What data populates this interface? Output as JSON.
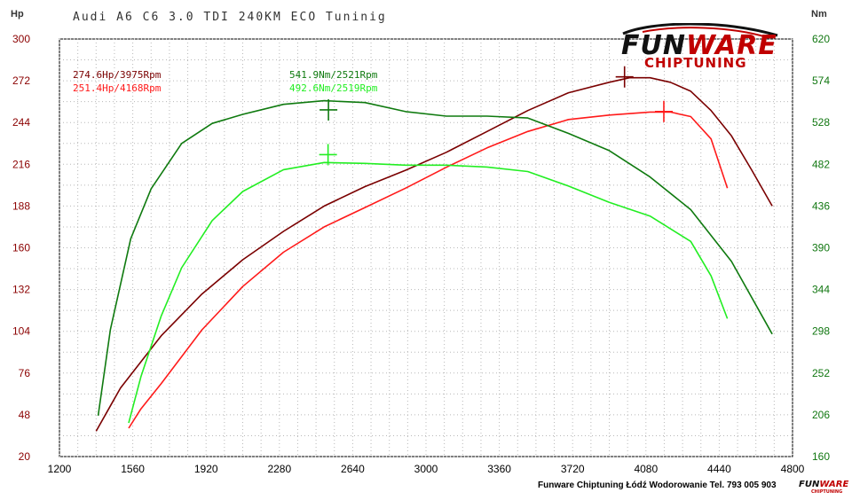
{
  "title": "Audi A6 C6 3.0 TDI 240KM ECO Tuninig",
  "footer": "Funware Chiptuning Łódź Wodorowanie Tel. 793 005 903",
  "logo": {
    "main_a": "FUN",
    "main_b": "WARE",
    "sub": "CHIPTUNING",
    "mini_a": "FUN",
    "mini_b": "WARE",
    "mini_sub": "CHIPTUNING"
  },
  "chart_data": {
    "type": "line",
    "title": "Audi A6 C6 3.0 TDI 240KM ECO Tuninig",
    "xlabel": "",
    "ylabel": "Hp",
    "y2label": "Nm",
    "xlim": [
      1200,
      4800
    ],
    "ylim": [
      20,
      300
    ],
    "y2lim": [
      160,
      620
    ],
    "grid": true,
    "x_ticks": [
      1200,
      1560,
      1920,
      2280,
      2640,
      3000,
      3360,
      3720,
      4080,
      4440,
      4800
    ],
    "y_ticks": [
      20,
      48,
      76,
      104,
      132,
      160,
      188,
      216,
      244,
      272,
      300
    ],
    "y2_ticks": [
      160,
      206,
      252,
      298,
      344,
      390,
      436,
      482,
      528,
      574,
      620
    ],
    "colors": {
      "hp_tuned": "#7a0000",
      "hp_stock": "#ff1a1a",
      "nm_tuned": "#0f7a0f",
      "nm_stock": "#22ee22"
    },
    "legend": [
      {
        "text": "274.6Hp/3975Rpm",
        "color": "#7a0000"
      },
      {
        "text": "251.4Hp/4168Rpm",
        "color": "#ff1a1a"
      },
      {
        "text": "541.9Nm/2521Rpm",
        "color": "#0f7a0f"
      },
      {
        "text": "492.6Nm/2519Rpm",
        "color": "#22ee22"
      }
    ],
    "series": [
      {
        "axis": "left",
        "color": "#7a0000",
        "peak": [
          3975,
          274.6
        ],
        "x": [
          1380,
          1500,
          1700,
          1900,
          2100,
          2300,
          2500,
          2700,
          2900,
          3100,
          3300,
          3500,
          3700,
          3900,
          4000,
          4100,
          4200,
          4300,
          4400,
          4500,
          4600,
          4700
        ],
        "y": [
          37,
          66,
          101,
          129,
          152,
          171,
          188,
          201,
          212,
          224,
          238,
          252,
          264,
          271,
          274,
          274,
          271,
          265,
          252,
          235,
          212,
          188
        ]
      },
      {
        "axis": "left",
        "color": "#ff1a1a",
        "peak": [
          4168,
          251.4
        ],
        "x": [
          1540,
          1600,
          1700,
          1900,
          2100,
          2300,
          2500,
          2700,
          2900,
          3100,
          3300,
          3500,
          3700,
          3900,
          4100,
          4200,
          4300,
          4400,
          4480
        ],
        "y": [
          39,
          52,
          69,
          105,
          134,
          157,
          174,
          187,
          200,
          214,
          227,
          238,
          246,
          249,
          251,
          251,
          248,
          233,
          200
        ]
      },
      {
        "axis": "right",
        "color": "#0f7a0f",
        "peak": [
          2521,
          541.9
        ],
        "x": [
          1390,
          1450,
          1550,
          1650,
          1800,
          1950,
          2100,
          2300,
          2500,
          2700,
          2900,
          3100,
          3300,
          3500,
          3700,
          3900,
          4100,
          4300,
          4500,
          4700
        ],
        "y": [
          205,
          300,
          400,
          455,
          505,
          527,
          537,
          548,
          552,
          550,
          540,
          535,
          535,
          533,
          516,
          497,
          468,
          432,
          375,
          295
        ]
      },
      {
        "axis": "right",
        "color": "#22ee22",
        "peak": [
          2519,
          492.6
        ],
        "x": [
          1540,
          1600,
          1700,
          1800,
          1950,
          2100,
          2300,
          2500,
          2700,
          2900,
          3100,
          3300,
          3500,
          3700,
          3900,
          4100,
          4300,
          4400,
          4480
        ],
        "y": [
          197,
          248,
          315,
          368,
          420,
          452,
          476,
          484,
          483,
          481,
          481,
          479,
          474,
          458,
          440,
          425,
          397,
          359,
          312
        ]
      }
    ]
  }
}
